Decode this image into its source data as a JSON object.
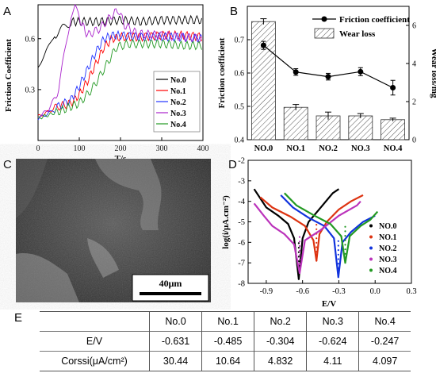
{
  "panel_letters": {
    "a": "A",
    "b": "B",
    "c": "C",
    "d": "D",
    "e": "E"
  },
  "chart_data": [
    {
      "panel": "A",
      "type": "line",
      "xlabel": "T/s",
      "ylabel": "Friction Coefficient",
      "xlim": [
        0,
        400
      ],
      "ylim": [
        0.0,
        0.8
      ],
      "xticks": [
        "0",
        "100",
        "200",
        "300",
        "400"
      ],
      "yticks": [
        "0.3",
        "0.6"
      ],
      "grid": false,
      "legend_position": "right",
      "series": [
        {
          "name": "No.0",
          "color": "#000000",
          "x": [
            0,
            10,
            20,
            30,
            40,
            50,
            60,
            70,
            80,
            100,
            150,
            200,
            250,
            300,
            350,
            400
          ],
          "y": [
            0.43,
            0.48,
            0.53,
            0.57,
            0.62,
            0.64,
            0.66,
            0.68,
            0.7,
            0.7,
            0.7,
            0.71,
            0.7,
            0.71,
            0.71,
            0.71
          ]
        },
        {
          "name": "No.1",
          "color": "#ff0000",
          "x": [
            0,
            25,
            50,
            80,
            100,
            120,
            140,
            160,
            180,
            200,
            250,
            300,
            350,
            400
          ],
          "y": [
            0.14,
            0.17,
            0.2,
            0.22,
            0.27,
            0.35,
            0.45,
            0.55,
            0.6,
            0.61,
            0.61,
            0.62,
            0.62,
            0.61
          ]
        },
        {
          "name": "No.2",
          "color": "#2233ff",
          "x": [
            0,
            25,
            50,
            80,
            100,
            120,
            140,
            160,
            180,
            200,
            250,
            300,
            350,
            400
          ],
          "y": [
            0.13,
            0.16,
            0.2,
            0.24,
            0.32,
            0.42,
            0.52,
            0.6,
            0.62,
            0.62,
            0.61,
            0.61,
            0.61,
            0.6
          ]
        },
        {
          "name": "No.3",
          "color": "#aa22cc",
          "x": [
            0,
            25,
            50,
            60,
            70,
            80,
            90,
            100,
            120,
            150,
            180,
            195,
            210,
            240,
            300,
            400
          ],
          "y": [
            0.14,
            0.18,
            0.3,
            0.45,
            0.6,
            0.74,
            0.78,
            0.72,
            0.62,
            0.66,
            0.74,
            0.77,
            0.68,
            0.63,
            0.62,
            0.6
          ]
        },
        {
          "name": "No.4",
          "color": "#229922",
          "x": [
            0,
            50,
            100,
            130,
            160,
            190,
            220,
            250,
            300,
            350,
            400
          ],
          "y": [
            0.13,
            0.17,
            0.22,
            0.3,
            0.42,
            0.55,
            0.57,
            0.57,
            0.57,
            0.56,
            0.56
          ]
        }
      ]
    },
    {
      "panel": "B",
      "type": "bar",
      "ylabel": "Friction coefficient",
      "y2label": "Wear loss/mg",
      "categories": [
        "NO.0",
        "NO.1",
        "NO.2",
        "NO.3",
        "NO.4"
      ],
      "ylim": [
        0.4,
        0.8
      ],
      "y2lim": [
        0,
        7
      ],
      "yticks": [
        "0.4",
        "0.5",
        "0.6",
        "0.7"
      ],
      "y2ticks": [
        "0",
        "2",
        "4",
        "6"
      ],
      "legend_position": "top-right",
      "series": [
        {
          "name": "Friction coefficient",
          "kind": "line",
          "axis": "left",
          "values": [
            0.683,
            0.603,
            0.589,
            0.604,
            0.556
          ],
          "errors": [
            0.012,
            0.01,
            0.01,
            0.012,
            0.022
          ]
        },
        {
          "name": "Wear loss",
          "kind": "bar",
          "axis": "right",
          "values": [
            6.2,
            1.7,
            1.25,
            1.25,
            1.05
          ],
          "errors": [
            0.15,
            0.15,
            0.2,
            0.12,
            0.08
          ]
        }
      ]
    },
    {
      "panel": "D",
      "type": "line",
      "xlabel": "E/V",
      "ylabel": "log(i/μA.cm⁻²)",
      "xlim": [
        -1.05,
        0.3
      ],
      "ylim": [
        -8,
        -2
      ],
      "xticks": [
        "-0.9",
        "-0.6",
        "-0.3",
        "0.0",
        "0.3"
      ],
      "yticks": [
        "-2",
        "-3",
        "-4",
        "-5",
        "-6",
        "-7",
        "-8"
      ],
      "legend_position": "right",
      "series": [
        {
          "name": "NO.0",
          "color": "#000000",
          "ecorr": -0.631,
          "lmin": -7.8,
          "points": [
            [
              -1.0,
              -3.4
            ],
            [
              -0.9,
              -4.3
            ],
            [
              -0.8,
              -4.7
            ],
            [
              -0.72,
              -5.1
            ],
            [
              -0.67,
              -5.8
            ],
            [
              -0.631,
              -7.8
            ],
            [
              -0.6,
              -5.8
            ],
            [
              -0.55,
              -5.0
            ],
            [
              -0.45,
              -4.3
            ],
            [
              -0.35,
              -3.6
            ],
            [
              -0.3,
              -3.4
            ]
          ]
        },
        {
          "name": "NO.1",
          "color": "#dd3311",
          "ecorr": -0.485,
          "lmin": -6.9,
          "points": [
            [
              -0.95,
              -3.8
            ],
            [
              -0.85,
              -4.3
            ],
            [
              -0.7,
              -4.75
            ],
            [
              -0.58,
              -5.2
            ],
            [
              -0.51,
              -5.9
            ],
            [
              -0.485,
              -6.9
            ],
            [
              -0.46,
              -5.6
            ],
            [
              -0.4,
              -5.0
            ],
            [
              -0.3,
              -4.4
            ],
            [
              -0.2,
              -4.0
            ],
            [
              -0.1,
              -3.7
            ]
          ]
        },
        {
          "name": "NO.2",
          "color": "#1133dd",
          "ecorr": -0.304,
          "lmin": -7.7,
          "points": [
            [
              -0.78,
              -3.7
            ],
            [
              -0.68,
              -4.3
            ],
            [
              -0.55,
              -4.8
            ],
            [
              -0.42,
              -5.2
            ],
            [
              -0.34,
              -5.8
            ],
            [
              -0.304,
              -7.7
            ],
            [
              -0.27,
              -6.0
            ],
            [
              -0.2,
              -5.5
            ],
            [
              -0.1,
              -5.0
            ],
            [
              0.0,
              -4.7
            ]
          ]
        },
        {
          "name": "NO.3",
          "color": "#bb33bb",
          "ecorr": -0.624,
          "lmin": -7.5,
          "points": [
            [
              -1.0,
              -4.1
            ],
            [
              -0.92,
              -4.7
            ],
            [
              -0.85,
              -5.2
            ],
            [
              -0.75,
              -5.6
            ],
            [
              -0.67,
              -6.1
            ],
            [
              -0.624,
              -7.5
            ],
            [
              -0.58,
              -5.9
            ],
            [
              -0.45,
              -5.4
            ],
            [
              -0.3,
              -4.7
            ],
            [
              -0.15,
              -4.2
            ],
            [
              -0.12,
              -4.0
            ]
          ]
        },
        {
          "name": "NO.4",
          "color": "#229922",
          "ecorr": -0.247,
          "lmin": -7.0,
          "points": [
            [
              -0.75,
              -3.6
            ],
            [
              -0.65,
              -4.2
            ],
            [
              -0.5,
              -4.7
            ],
            [
              -0.37,
              -5.1
            ],
            [
              -0.28,
              -5.7
            ],
            [
              -0.247,
              -7.0
            ],
            [
              -0.21,
              -5.7
            ],
            [
              -0.12,
              -5.2
            ],
            [
              -0.04,
              -4.9
            ],
            [
              0.02,
              -4.5
            ]
          ]
        }
      ]
    },
    {
      "panel": "E",
      "type": "table",
      "columns": [
        "",
        "No.0",
        "No.1",
        "No.2",
        "No.3",
        "No.4"
      ],
      "rows": [
        [
          "E/V",
          "-0.631",
          "-0.485",
          "-0.304",
          "-0.624",
          "-0.247"
        ],
        [
          "Corssi(μA/cm²)",
          "30.44",
          "10.64",
          "4.832",
          "4.11",
          "4.097"
        ]
      ]
    }
  ],
  "sem_image": {
    "scale_bar_label": "40μm"
  }
}
